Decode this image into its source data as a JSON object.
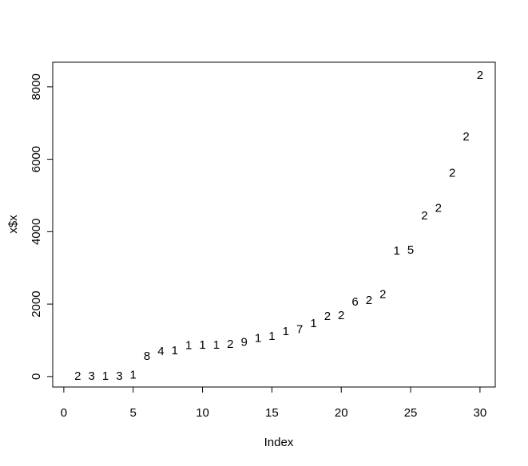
{
  "chart_data": {
    "type": "scatter",
    "x_label": "Index",
    "y_label": "x$x",
    "x": [
      1,
      2,
      3,
      4,
      5,
      6,
      7,
      8,
      9,
      10,
      11,
      12,
      13,
      14,
      15,
      16,
      17,
      18,
      19,
      20,
      21,
      22,
      23,
      24,
      25,
      26,
      27,
      28,
      29,
      30
    ],
    "values": [
      0,
      0,
      0,
      0,
      30,
      550,
      680,
      700,
      840,
      860,
      860,
      880,
      930,
      1040,
      1100,
      1230,
      1280,
      1450,
      1650,
      1670,
      2050,
      2090,
      2250,
      3460,
      3480,
      4430,
      4630,
      5600,
      6610,
      8310
    ],
    "point_labels": [
      "2",
      "3",
      "1",
      "3",
      "1",
      "8",
      "4",
      "1",
      "1",
      "1",
      "1",
      "2",
      "9",
      "1",
      "1",
      "1",
      "7",
      "1",
      "2",
      "2",
      "6",
      "2",
      "2",
      "1",
      "5",
      "2",
      "2",
      "2",
      "2",
      "2"
    ],
    "color": "#000000",
    "xlim": [
      -0.8,
      31.1
    ],
    "ylim": [
      -290,
      8680
    ],
    "xticks": [
      0,
      5,
      10,
      15,
      20,
      25,
      30
    ],
    "yticks": [
      0,
      2000,
      4000,
      6000,
      8000
    ]
  }
}
